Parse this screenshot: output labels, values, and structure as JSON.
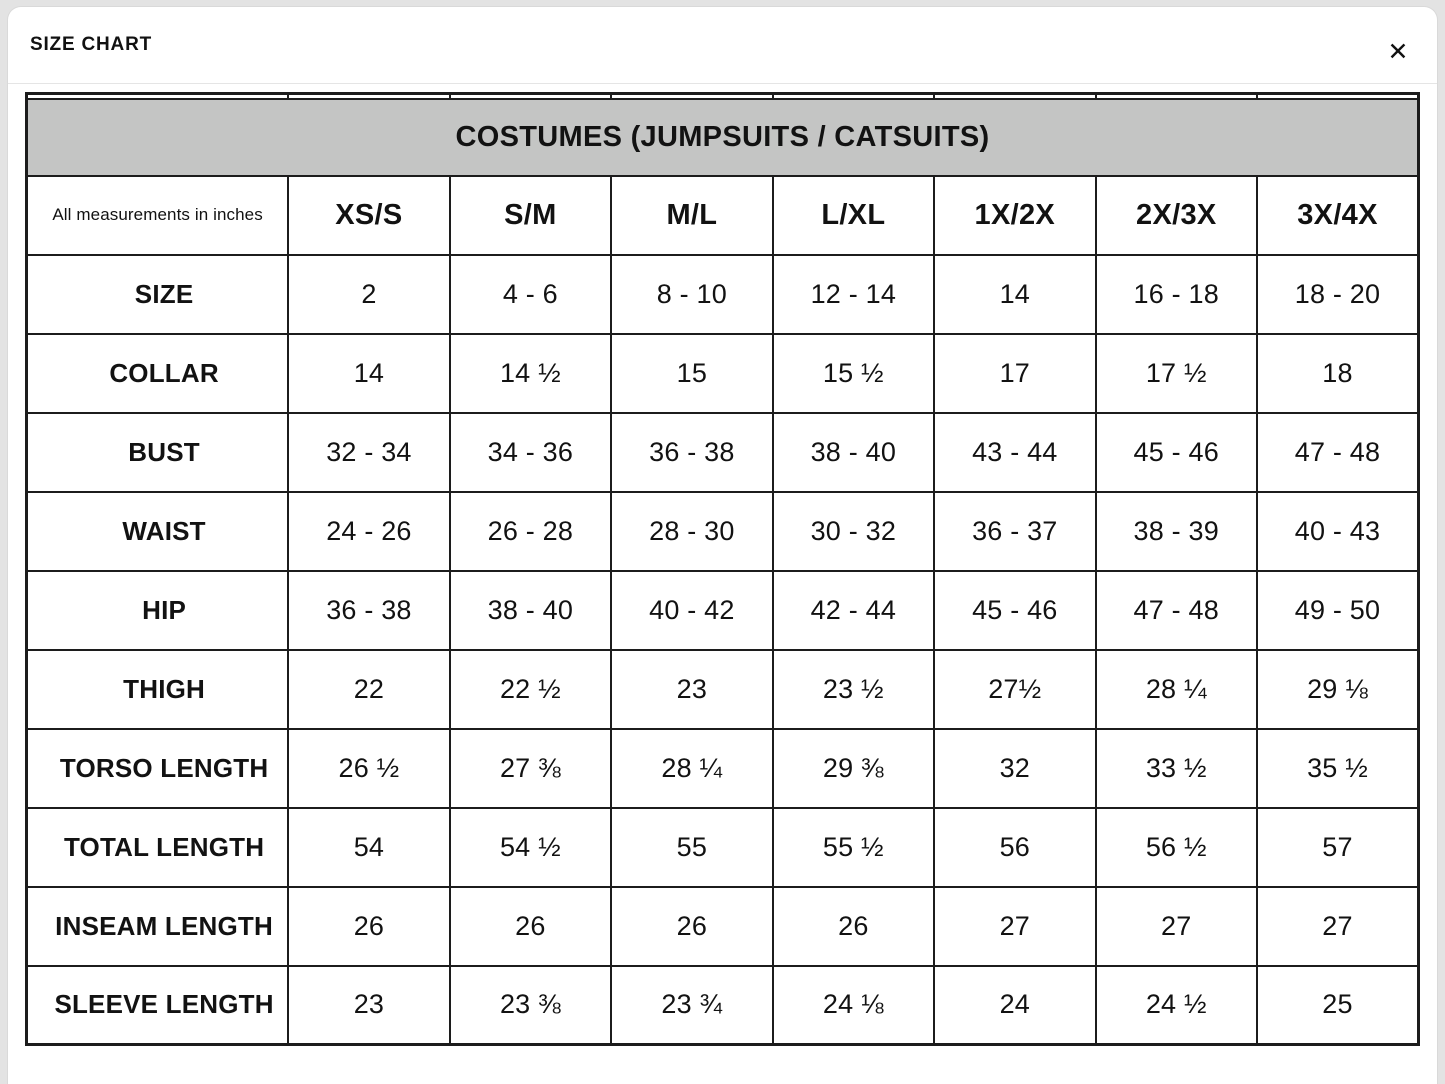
{
  "modal": {
    "title": "SIZE CHART",
    "close_icon": "✕"
  },
  "table": {
    "banner": "COSTUMES (JUMPSUITS / CATSUITS)",
    "corner_note": "All measurements in inches",
    "size_headers": [
      "XS/S",
      "S/M",
      "M/L",
      "L/XL",
      "1X/2X",
      "2X/3X",
      "3X/4X"
    ],
    "rows": [
      {
        "label": "SIZE",
        "values": [
          "2",
          "4 - 6",
          "8 - 10",
          "12 - 14",
          "14",
          "16 - 18",
          "18 - 20"
        ]
      },
      {
        "label": "COLLAR",
        "values": [
          "14",
          "14 ½",
          "15",
          "15 ½",
          "17",
          "17 ½",
          "18"
        ]
      },
      {
        "label": "BUST",
        "values": [
          "32 - 34",
          "34 - 36",
          "36 - 38",
          "38 - 40",
          "43 - 44",
          "45 - 46",
          "47 - 48"
        ]
      },
      {
        "label": "WAIST",
        "values": [
          "24 - 26",
          "26 - 28",
          "28 - 30",
          "30 - 32",
          "36 - 37",
          "38 - 39",
          "40 - 43"
        ]
      },
      {
        "label": "HIP",
        "values": [
          "36 - 38",
          "38 - 40",
          "40 - 42",
          "42 - 44",
          "45 - 46",
          "47 - 48",
          "49 - 50"
        ]
      },
      {
        "label": "THIGH",
        "values": [
          "22",
          "22 ½",
          "23",
          "23 ½",
          "27½",
          "28 ¼",
          "29 ⅛"
        ]
      },
      {
        "label": "TORSO LENGTH",
        "values": [
          "26 ½",
          "27 ⅜",
          "28 ¼",
          "29 ⅜",
          "32",
          "33 ½",
          "35 ½"
        ]
      },
      {
        "label": "TOTAL LENGTH",
        "values": [
          "54",
          "54 ½",
          "55",
          "55 ½",
          "56",
          "56 ½",
          "57"
        ]
      },
      {
        "label": "INSEAM LENGTH",
        "values": [
          "26",
          "26",
          "26",
          "26",
          "27",
          "27",
          "27"
        ]
      },
      {
        "label": "SLEEVE LENGTH",
        "values": [
          "23",
          "23 ⅜",
          "23 ¾",
          "24 ⅛",
          "24",
          "24 ½",
          "25"
        ]
      }
    ]
  },
  "colors": {
    "banner_bg": "#c4c5c4",
    "table_border": "#1c1c1c",
    "header_divider": "#e5e5e5",
    "text": "#121212"
  },
  "layout_hints": {
    "label_col_pct": 18.8,
    "data_col_pct": 11.6
  }
}
